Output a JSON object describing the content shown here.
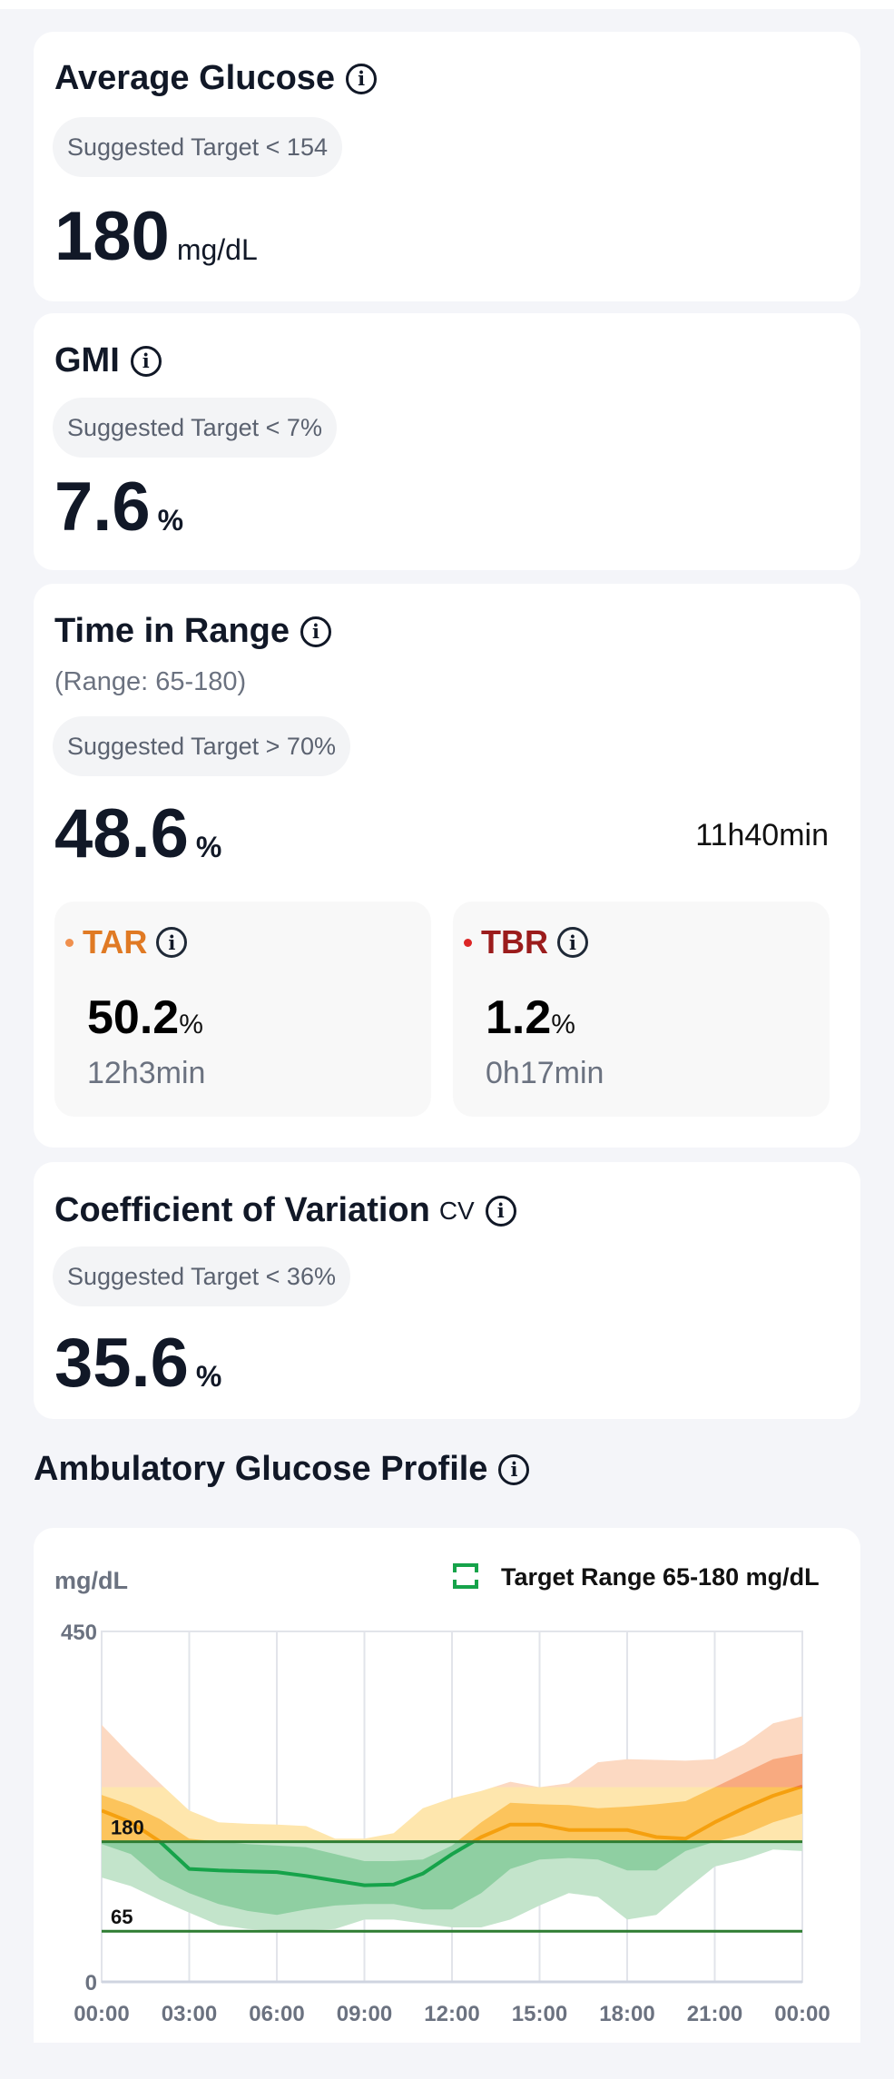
{
  "average_glucose": {
    "title": "Average Glucose",
    "target": "Suggested Target < 154",
    "value": "180",
    "unit": "mg/dL"
  },
  "gmi": {
    "title": "GMI",
    "target": "Suggested Target < 7%",
    "value": "7.6",
    "unit": "%"
  },
  "time_in_range": {
    "title": "Time in Range",
    "range": "(Range: 65-180)",
    "target": "Suggested Target > 70%",
    "value": "48.6",
    "unit": "%",
    "duration": "11h40min",
    "tar": {
      "label": "TAR",
      "value": "50.2",
      "unit": "%",
      "duration": "12h3min",
      "color": "#e07a24"
    },
    "tbr": {
      "label": "TBR",
      "value": "1.2",
      "unit": "%",
      "duration": "0h17min",
      "color": "#9b1c1c"
    }
  },
  "cv": {
    "title": "Coefficient of Variation",
    "abbr": "CV",
    "target": "Suggested Target < 36%",
    "value": "35.6",
    "unit": "%"
  },
  "agp": {
    "title": "Ambulatory Glucose Profile"
  },
  "chart_data": {
    "type": "area",
    "title": "Ambulatory Glucose Profile",
    "ylabel": "mg/dL",
    "legend": "Target Range 65-180 mg/dL",
    "ylim": [
      0,
      450
    ],
    "y_ticks": [
      "0",
      "450"
    ],
    "reference_lines": [
      {
        "value": 65,
        "label": "65"
      },
      {
        "value": 180,
        "label": "180"
      }
    ],
    "x_ticks": [
      "00:00",
      "03:00",
      "06:00",
      "09:00",
      "12:00",
      "15:00",
      "18:00",
      "21:00",
      "00:00"
    ],
    "x_hours": [
      0,
      1,
      2,
      3,
      4,
      5,
      6,
      7,
      8,
      9,
      10,
      11,
      12,
      13,
      14,
      15,
      16,
      17,
      18,
      19,
      20,
      21,
      22,
      23,
      24
    ],
    "p95": [
      330,
      291,
      255,
      220,
      205,
      203,
      202,
      200,
      184,
      184,
      191,
      223,
      236,
      245,
      257,
      250,
      255,
      282,
      286,
      285,
      284,
      286,
      305,
      332,
      341
    ],
    "p75": [
      240,
      227,
      209,
      184,
      180,
      177,
      175,
      173,
      164,
      155,
      155,
      157,
      175,
      205,
      230,
      228,
      227,
      223,
      225,
      228,
      232,
      250,
      268,
      286,
      293
    ],
    "median": [
      220,
      205,
      180,
      145,
      143,
      142,
      141,
      136,
      130,
      124,
      125,
      139,
      164,
      186,
      202,
      202,
      195,
      195,
      195,
      186,
      184,
      205,
      223,
      239,
      251
    ],
    "p25": [
      177,
      164,
      132,
      114,
      100,
      91,
      86,
      93,
      98,
      100,
      100,
      93,
      93,
      114,
      145,
      157,
      159,
      157,
      143,
      143,
      168,
      180,
      189,
      205,
      216
    ],
    "p5": [
      134,
      123,
      105,
      89,
      73,
      68,
      66,
      66,
      68,
      80,
      80,
      75,
      70,
      70,
      80,
      98,
      114,
      109,
      80,
      86,
      118,
      148,
      157,
      170,
      168
    ]
  }
}
